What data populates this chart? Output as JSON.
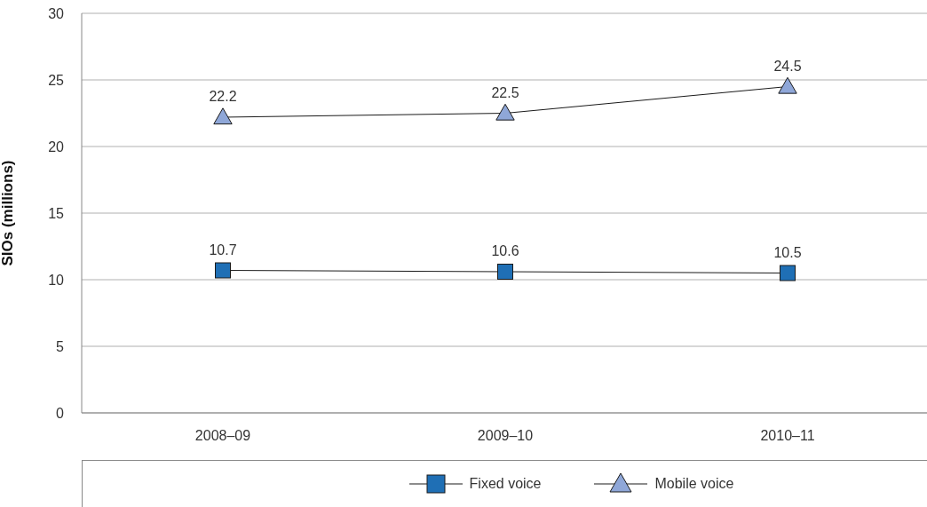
{
  "chart_data": {
    "type": "line",
    "ylabel": "SIOs (millions)",
    "categories": [
      "2008–09",
      "2009–10",
      "2010–11"
    ],
    "series": [
      {
        "name": "Fixed voice",
        "color": "#1f6fb5",
        "marker": "square",
        "values": [
          10.7,
          10.6,
          10.5
        ]
      },
      {
        "name": "Mobile voice",
        "color": "#8fa7d8",
        "marker": "triangle",
        "values": [
          22.2,
          22.5,
          24.5
        ]
      }
    ],
    "ylim": [
      0,
      30
    ],
    "yticks": [
      0,
      5,
      10,
      15,
      20,
      25,
      30
    ],
    "grid": "y",
    "legend": "bottom",
    "data_labels": true
  }
}
